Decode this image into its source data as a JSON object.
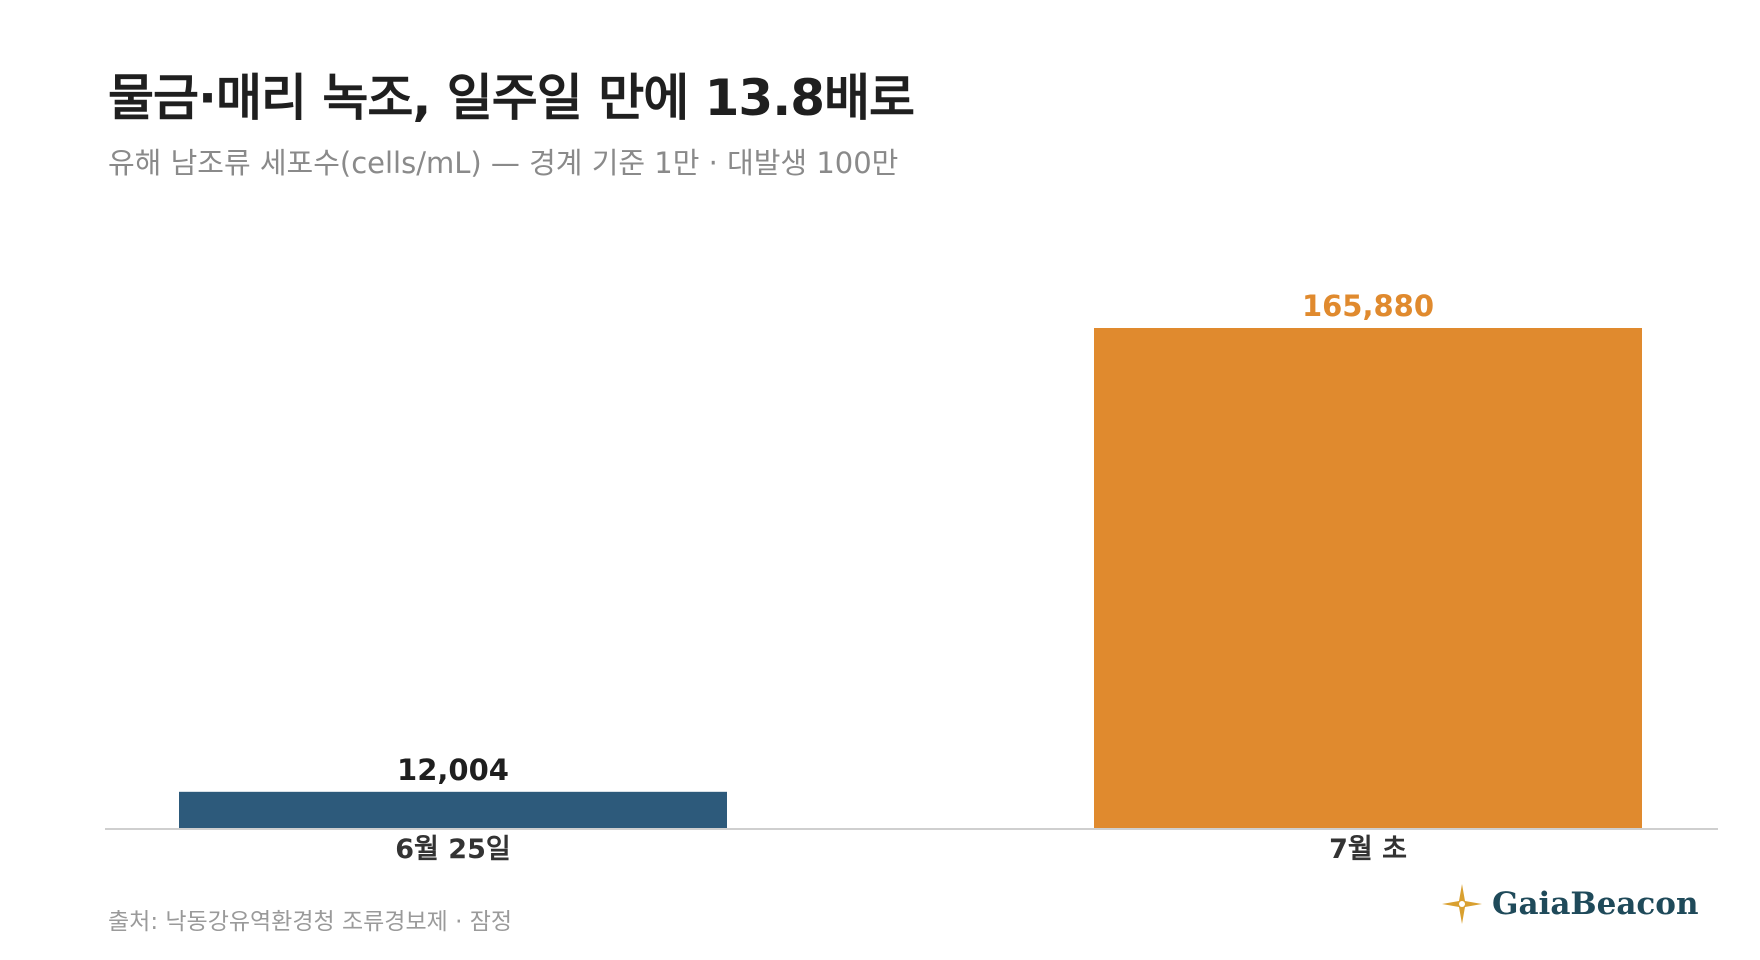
{
  "header": {
    "title": "물금·매리 녹조, 일주일 만에 13.8배로",
    "subtitle": "유해 남조류 세포수(cells/mL) — 경계 기준 1만 · 대발생 100만"
  },
  "chart_data": {
    "type": "bar",
    "categories": [
      "6월 25일",
      "7월 초"
    ],
    "values": [
      12004,
      165880
    ],
    "value_labels": [
      "12,004",
      "165,880"
    ],
    "colors": [
      "#2d5a7b",
      "#e08a2e"
    ],
    "label_colors": [
      "#1f1f1f",
      "#e08a2e"
    ],
    "ylim": [
      0,
      165880
    ],
    "grid": false,
    "legend": "none"
  },
  "footer": {
    "source": "출처: 낙동강유역환경청 조류경보제 · 잠정",
    "brand": "GaiaBeacon",
    "brand_icon": "compass-star-icon",
    "brand_icon_color": "#d9a030"
  }
}
